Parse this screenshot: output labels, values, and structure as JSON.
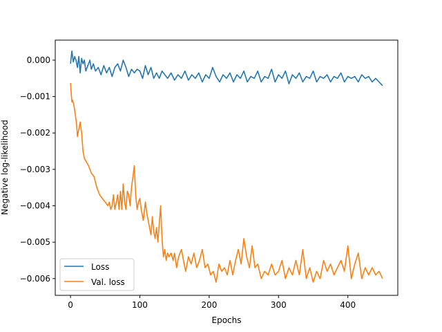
{
  "chart_data": {
    "type": "line",
    "title": "",
    "xlabel": "Epochs",
    "ylabel": "Negative log-likelihood",
    "xlim": [
      -22,
      472
    ],
    "ylim": [
      -0.00646,
      0.00055
    ],
    "xticks": [
      0,
      100,
      200,
      300,
      400
    ],
    "xtick_labels": [
      "0",
      "100",
      "200",
      "300",
      "400"
    ],
    "yticks": [
      -0.006,
      -0.005,
      -0.004,
      -0.003,
      -0.002,
      -0.001,
      0.0
    ],
    "ytick_labels": [
      "−0.006",
      "−0.005",
      "−0.004",
      "−0.003",
      "−0.002",
      "−0.001",
      "0.000"
    ],
    "grid": false,
    "legend_position": "lower-left",
    "series": [
      {
        "name": "Loss",
        "color": "#1f77b4",
        "x": [
          0,
          2,
          4,
          6,
          8,
          10,
          12,
          14,
          16,
          18,
          20,
          22,
          25,
          28,
          30,
          33,
          36,
          40,
          44,
          48,
          52,
          56,
          60,
          64,
          68,
          72,
          76,
          80,
          84,
          88,
          92,
          96,
          100,
          104,
          108,
          112,
          116,
          120,
          124,
          128,
          132,
          136,
          140,
          145,
          150,
          155,
          160,
          165,
          170,
          175,
          180,
          185,
          190,
          195,
          200,
          205,
          210,
          215,
          220,
          225,
          230,
          235,
          240,
          245,
          250,
          255,
          260,
          265,
          270,
          275,
          280,
          285,
          290,
          295,
          300,
          305,
          310,
          315,
          320,
          325,
          330,
          335,
          340,
          345,
          350,
          355,
          360,
          365,
          370,
          375,
          380,
          385,
          390,
          395,
          400,
          405,
          410,
          415,
          420,
          425,
          430,
          435,
          440,
          445,
          450
        ],
        "y": [
          -0.0001,
          0.00025,
          -5e-05,
          0.0001,
          0.0,
          -0.0002,
          0.0001,
          -0.00035,
          5e-05,
          -0.0001,
          0.0,
          -0.0003,
          -0.00015,
          0.0,
          -0.00025,
          -0.0001,
          -0.0003,
          -0.0002,
          -0.0004,
          -0.00015,
          -0.00035,
          -0.0002,
          -0.00045,
          -0.0002,
          -0.0001,
          -0.0003,
          0.0,
          -0.0002,
          -0.00045,
          -0.00025,
          -0.00035,
          -0.00025,
          -0.0003,
          -0.0005,
          -0.00015,
          -0.0004,
          -0.0002,
          -0.0005,
          -0.00035,
          -0.0005,
          -0.0003,
          -0.0004,
          -0.0005,
          -0.00035,
          -0.00055,
          -0.0004,
          -0.0005,
          -0.0003,
          -0.00055,
          -0.0004,
          -0.0005,
          -0.00035,
          -0.0006,
          -0.0004,
          -0.0005,
          -0.0002,
          -0.00045,
          -0.0006,
          -0.0004,
          -0.0005,
          -0.00035,
          -0.0006,
          -0.0004,
          -0.0005,
          -0.0003,
          -0.0006,
          -0.00045,
          -0.0005,
          -0.0003,
          -0.0006,
          -0.00045,
          -0.0005,
          -0.00025,
          -0.0006,
          -0.0004,
          -0.0005,
          -0.0003,
          -0.00065,
          -0.0004,
          -0.0005,
          -0.00035,
          -0.0006,
          -0.00045,
          -0.0005,
          -0.0003,
          -0.0006,
          -0.00045,
          -0.0005,
          -0.0004,
          -0.0006,
          -0.00045,
          -0.0005,
          -0.00035,
          -0.0006,
          -0.00045,
          -0.0005,
          -0.00045,
          -0.0006,
          -0.0004,
          -0.0005,
          -0.00045,
          -0.0006,
          -0.0005,
          -0.0006,
          -0.0007
        ]
      },
      {
        "name": "Val. loss",
        "color": "#ff7f0e",
        "x": [
          0,
          1,
          2,
          3,
          5,
          7,
          9,
          10,
          12,
          14,
          16,
          18,
          20,
          23,
          26,
          30,
          34,
          38,
          42,
          46,
          50,
          54,
          56,
          58,
          60,
          62,
          64,
          66,
          68,
          70,
          72,
          74,
          76,
          78,
          80,
          82,
          84,
          86,
          88,
          90,
          92,
          94,
          96,
          98,
          100,
          102,
          105,
          108,
          110,
          113,
          116,
          118,
          120,
          122,
          124,
          126,
          128,
          130,
          132,
          134,
          136,
          138,
          140,
          142,
          145,
          148,
          150,
          153,
          156,
          160,
          163,
          166,
          170,
          174,
          178,
          182,
          186,
          190,
          194,
          198,
          202,
          206,
          210,
          214,
          218,
          222,
          226,
          230,
          234,
          238,
          242,
          246,
          250,
          254,
          258,
          262,
          266,
          270,
          275,
          280,
          285,
          290,
          295,
          300,
          305,
          310,
          315,
          320,
          325,
          330,
          335,
          340,
          345,
          350,
          355,
          360,
          365,
          370,
          375,
          380,
          385,
          390,
          395,
          400,
          405,
          410,
          415,
          420,
          425,
          430,
          435,
          440,
          445,
          450
        ],
        "y": [
          -0.00063,
          -0.0009,
          -0.00115,
          -0.0011,
          -0.00125,
          -0.0015,
          -0.0018,
          -0.0021,
          -0.0019,
          -0.0017,
          -0.002,
          -0.0025,
          -0.0027,
          -0.0028,
          -0.0029,
          -0.0031,
          -0.0032,
          -0.0035,
          -0.0037,
          -0.0038,
          -0.0039,
          -0.004,
          -0.0039,
          -0.0041,
          -0.004,
          -0.0037,
          -0.0041,
          -0.0039,
          -0.0037,
          -0.0041,
          -0.0036,
          -0.0041,
          -0.0034,
          -0.0039,
          -0.0041,
          -0.0036,
          -0.0037,
          -0.004,
          -0.0035,
          -0.0032,
          -0.0029,
          -0.0037,
          -0.0041,
          -0.0039,
          -0.0038,
          -0.0041,
          -0.0044,
          -0.0039,
          -0.0042,
          -0.0045,
          -0.0048,
          -0.0043,
          -0.0047,
          -0.0049,
          -0.0046,
          -0.005,
          -0.0045,
          -0.004,
          -0.0049,
          -0.0054,
          -0.0052,
          -0.0055,
          -0.0053,
          -0.0054,
          -0.0053,
          -0.0055,
          -0.0053,
          -0.0057,
          -0.0054,
          -0.0052,
          -0.0055,
          -0.0058,
          -0.0054,
          -0.0056,
          -0.0053,
          -0.0057,
          -0.0055,
          -0.0052,
          -0.0057,
          -0.0056,
          -0.0059,
          -0.0058,
          -0.0061,
          -0.0056,
          -0.0058,
          -0.0057,
          -0.0059,
          -0.0055,
          -0.0059,
          -0.0055,
          -0.0052,
          -0.0056,
          -0.0049,
          -0.0054,
          -0.0057,
          -0.0051,
          -0.0057,
          -0.0056,
          -0.006,
          -0.0058,
          -0.0059,
          -0.0056,
          -0.0059,
          -0.0058,
          -0.0055,
          -0.006,
          -0.0057,
          -0.0059,
          -0.0055,
          -0.0059,
          -0.0052,
          -0.006,
          -0.0057,
          -0.0061,
          -0.0058,
          -0.006,
          -0.0055,
          -0.0058,
          -0.0056,
          -0.0059,
          -0.0057,
          -0.0055,
          -0.0058,
          -0.0051,
          -0.006,
          -0.0056,
          -0.0053,
          -0.006,
          -0.0057,
          -0.0059,
          -0.0057,
          -0.0059,
          -0.0058,
          -0.006
        ]
      }
    ]
  }
}
